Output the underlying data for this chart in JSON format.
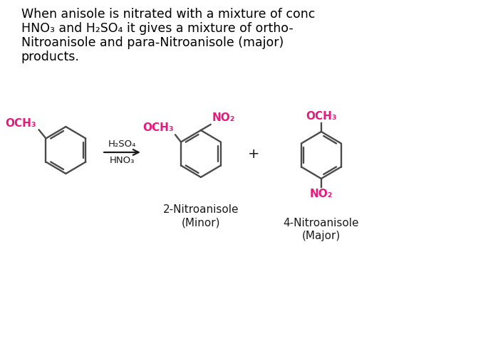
{
  "bg_color": "#ffffff",
  "text_color": "#000000",
  "pink_color": "#e8197d",
  "dark_color": "#1a1a1a",
  "gray_color": "#4a4a4a",
  "title_lines": [
    "When anisole is nitrated with a mixture of conc",
    "HNO₃ and H₂SO₄ it gives a mixture of ortho-",
    "Nitroanisole and para-Nitroanisole (major)",
    "products."
  ],
  "reagent_line1": "H₂SO₄",
  "reagent_line2": "HNO₃",
  "label1_line1": "2-Nitroanisole",
  "label1_line2": "(Minor)",
  "label2_line1": "4-Nitroanisole",
  "label2_line2": "(Major)",
  "och3": "OCH₃",
  "no2": "NO₂",
  "plus": "+"
}
